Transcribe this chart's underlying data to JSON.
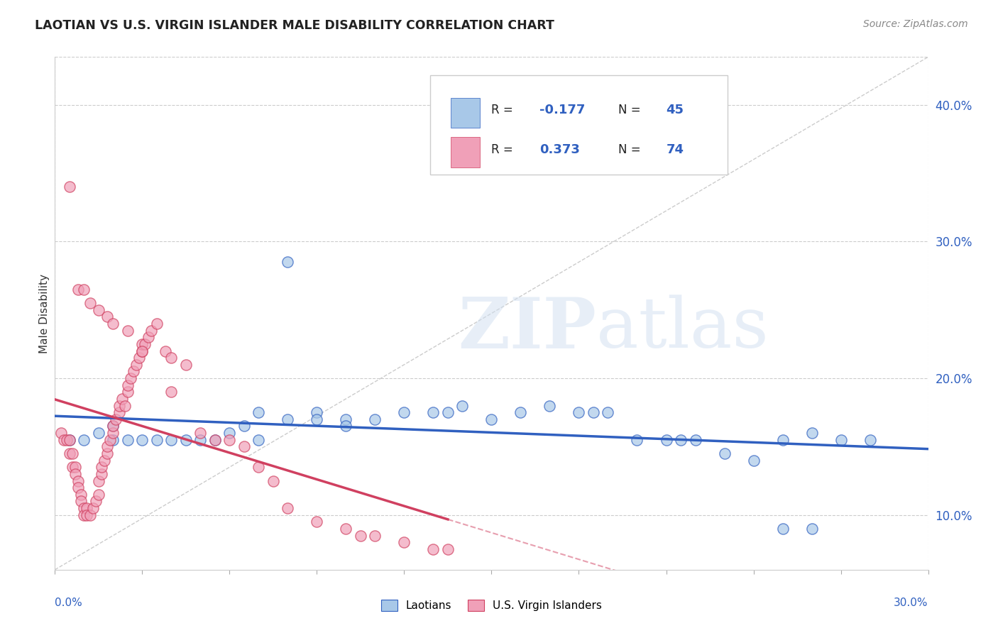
{
  "title": "LAOTIAN VS U.S. VIRGIN ISLANDER MALE DISABILITY CORRELATION CHART",
  "source": "Source: ZipAtlas.com",
  "ylabel": "Male Disability",
  "xmin": 0.0,
  "xmax": 0.3,
  "ymin": 0.06,
  "ymax": 0.435,
  "yticks": [
    0.1,
    0.2,
    0.3,
    0.4
  ],
  "ytick_labels": [
    "10.0%",
    "20.0%",
    "30.0%",
    "40.0%"
  ],
  "color_blue": "#a8c8e8",
  "color_pink": "#f0a0b8",
  "color_blue_dark": "#3060c0",
  "color_pink_dark": "#d04060",
  "color_text_blue": "#3060c0",
  "blue_r": "-0.177",
  "blue_n": "45",
  "pink_r": "0.373",
  "pink_n": "74",
  "blue_points_x": [
    0.005,
    0.01,
    0.015,
    0.02,
    0.02,
    0.025,
    0.03,
    0.035,
    0.04,
    0.045,
    0.05,
    0.055,
    0.06,
    0.065,
    0.07,
    0.08,
    0.09,
    0.1,
    0.11,
    0.12,
    0.13,
    0.135,
    0.14,
    0.15,
    0.16,
    0.17,
    0.18,
    0.185,
    0.19,
    0.2,
    0.21,
    0.215,
    0.22,
    0.23,
    0.24,
    0.25,
    0.26,
    0.27,
    0.28,
    0.25,
    0.26,
    0.07,
    0.08,
    0.09,
    0.1
  ],
  "blue_points_y": [
    0.155,
    0.155,
    0.16,
    0.165,
    0.155,
    0.155,
    0.155,
    0.155,
    0.155,
    0.155,
    0.155,
    0.155,
    0.16,
    0.165,
    0.155,
    0.285,
    0.175,
    0.17,
    0.17,
    0.175,
    0.175,
    0.175,
    0.18,
    0.17,
    0.175,
    0.18,
    0.175,
    0.175,
    0.175,
    0.155,
    0.155,
    0.155,
    0.155,
    0.145,
    0.14,
    0.09,
    0.09,
    0.155,
    0.155,
    0.155,
    0.16,
    0.175,
    0.17,
    0.17,
    0.165
  ],
  "pink_points_x": [
    0.002,
    0.003,
    0.004,
    0.005,
    0.005,
    0.006,
    0.006,
    0.007,
    0.007,
    0.008,
    0.008,
    0.009,
    0.009,
    0.01,
    0.01,
    0.011,
    0.011,
    0.012,
    0.013,
    0.014,
    0.015,
    0.015,
    0.016,
    0.016,
    0.017,
    0.018,
    0.018,
    0.019,
    0.02,
    0.02,
    0.021,
    0.022,
    0.022,
    0.023,
    0.024,
    0.025,
    0.025,
    0.026,
    0.027,
    0.028,
    0.029,
    0.03,
    0.03,
    0.031,
    0.032,
    0.033,
    0.035,
    0.038,
    0.04,
    0.045,
    0.05,
    0.055,
    0.06,
    0.065,
    0.07,
    0.075,
    0.08,
    0.09,
    0.1,
    0.105,
    0.11,
    0.12,
    0.13,
    0.135,
    0.005,
    0.008,
    0.01,
    0.012,
    0.015,
    0.018,
    0.02,
    0.025,
    0.03,
    0.04
  ],
  "pink_points_y": [
    0.16,
    0.155,
    0.155,
    0.155,
    0.145,
    0.145,
    0.135,
    0.135,
    0.13,
    0.125,
    0.12,
    0.115,
    0.11,
    0.105,
    0.1,
    0.105,
    0.1,
    0.1,
    0.105,
    0.11,
    0.115,
    0.125,
    0.13,
    0.135,
    0.14,
    0.145,
    0.15,
    0.155,
    0.16,
    0.165,
    0.17,
    0.175,
    0.18,
    0.185,
    0.18,
    0.19,
    0.195,
    0.2,
    0.205,
    0.21,
    0.215,
    0.22,
    0.225,
    0.225,
    0.23,
    0.235,
    0.24,
    0.22,
    0.215,
    0.21,
    0.16,
    0.155,
    0.155,
    0.15,
    0.135,
    0.125,
    0.105,
    0.095,
    0.09,
    0.085,
    0.085,
    0.08,
    0.075,
    0.075,
    0.34,
    0.265,
    0.265,
    0.255,
    0.25,
    0.245,
    0.24,
    0.235,
    0.22,
    0.19
  ]
}
